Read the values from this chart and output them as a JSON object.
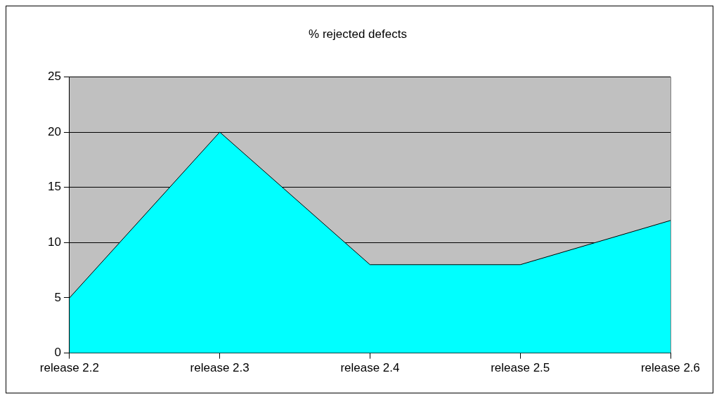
{
  "chart_data": {
    "type": "area",
    "title": "% rejected defects",
    "categories": [
      "release 2.2",
      "release 2.3",
      "release 2.4",
      "release 2.5",
      "release 2.6"
    ],
    "series": [
      {
        "color": "#00ffff",
        "values": [
          5,
          20,
          8,
          8,
          12
        ]
      }
    ],
    "ylim": [
      0,
      25
    ],
    "yticks": [
      0,
      5,
      10,
      15,
      20,
      25
    ],
    "grid": "y",
    "legend": false
  }
}
